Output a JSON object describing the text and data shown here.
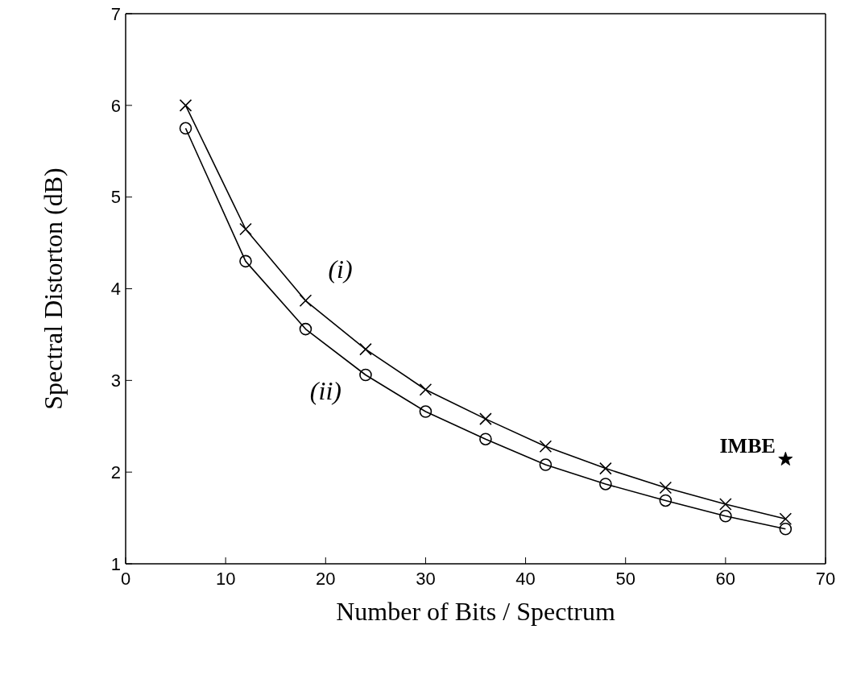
{
  "chart_data": {
    "type": "line",
    "xlabel": "Number of Bits / Spectrum",
    "ylabel": "Spectral Distorton (dB)",
    "xlim": [
      0,
      70
    ],
    "xticks": [
      0,
      10,
      20,
      30,
      40,
      50,
      60,
      70
    ],
    "ylim": [
      1,
      7
    ],
    "yticks": [
      1,
      2,
      3,
      4,
      5,
      6,
      7
    ],
    "series": [
      {
        "name": "(i)",
        "color": "#000000",
        "marker": "cross",
        "x": [
          6,
          12,
          18,
          24,
          30,
          36,
          42,
          48,
          54,
          60,
          66
        ],
        "values": [
          6.0,
          4.65,
          3.87,
          3.34,
          2.9,
          2.58,
          2.28,
          2.04,
          1.83,
          1.65,
          1.49
        ]
      },
      {
        "name": "(ii)",
        "color": "#000000",
        "marker": "circle",
        "x": [
          6,
          12,
          18,
          24,
          30,
          36,
          42,
          48,
          54,
          60,
          66
        ],
        "values": [
          5.75,
          4.3,
          3.56,
          3.06,
          2.66,
          2.36,
          2.08,
          1.87,
          1.69,
          1.52,
          1.38
        ]
      },
      {
        "name": "IMBE",
        "type": "scatter",
        "color": "#000000",
        "marker": "star",
        "x": [
          66
        ],
        "values": [
          2.14
        ]
      }
    ]
  }
}
